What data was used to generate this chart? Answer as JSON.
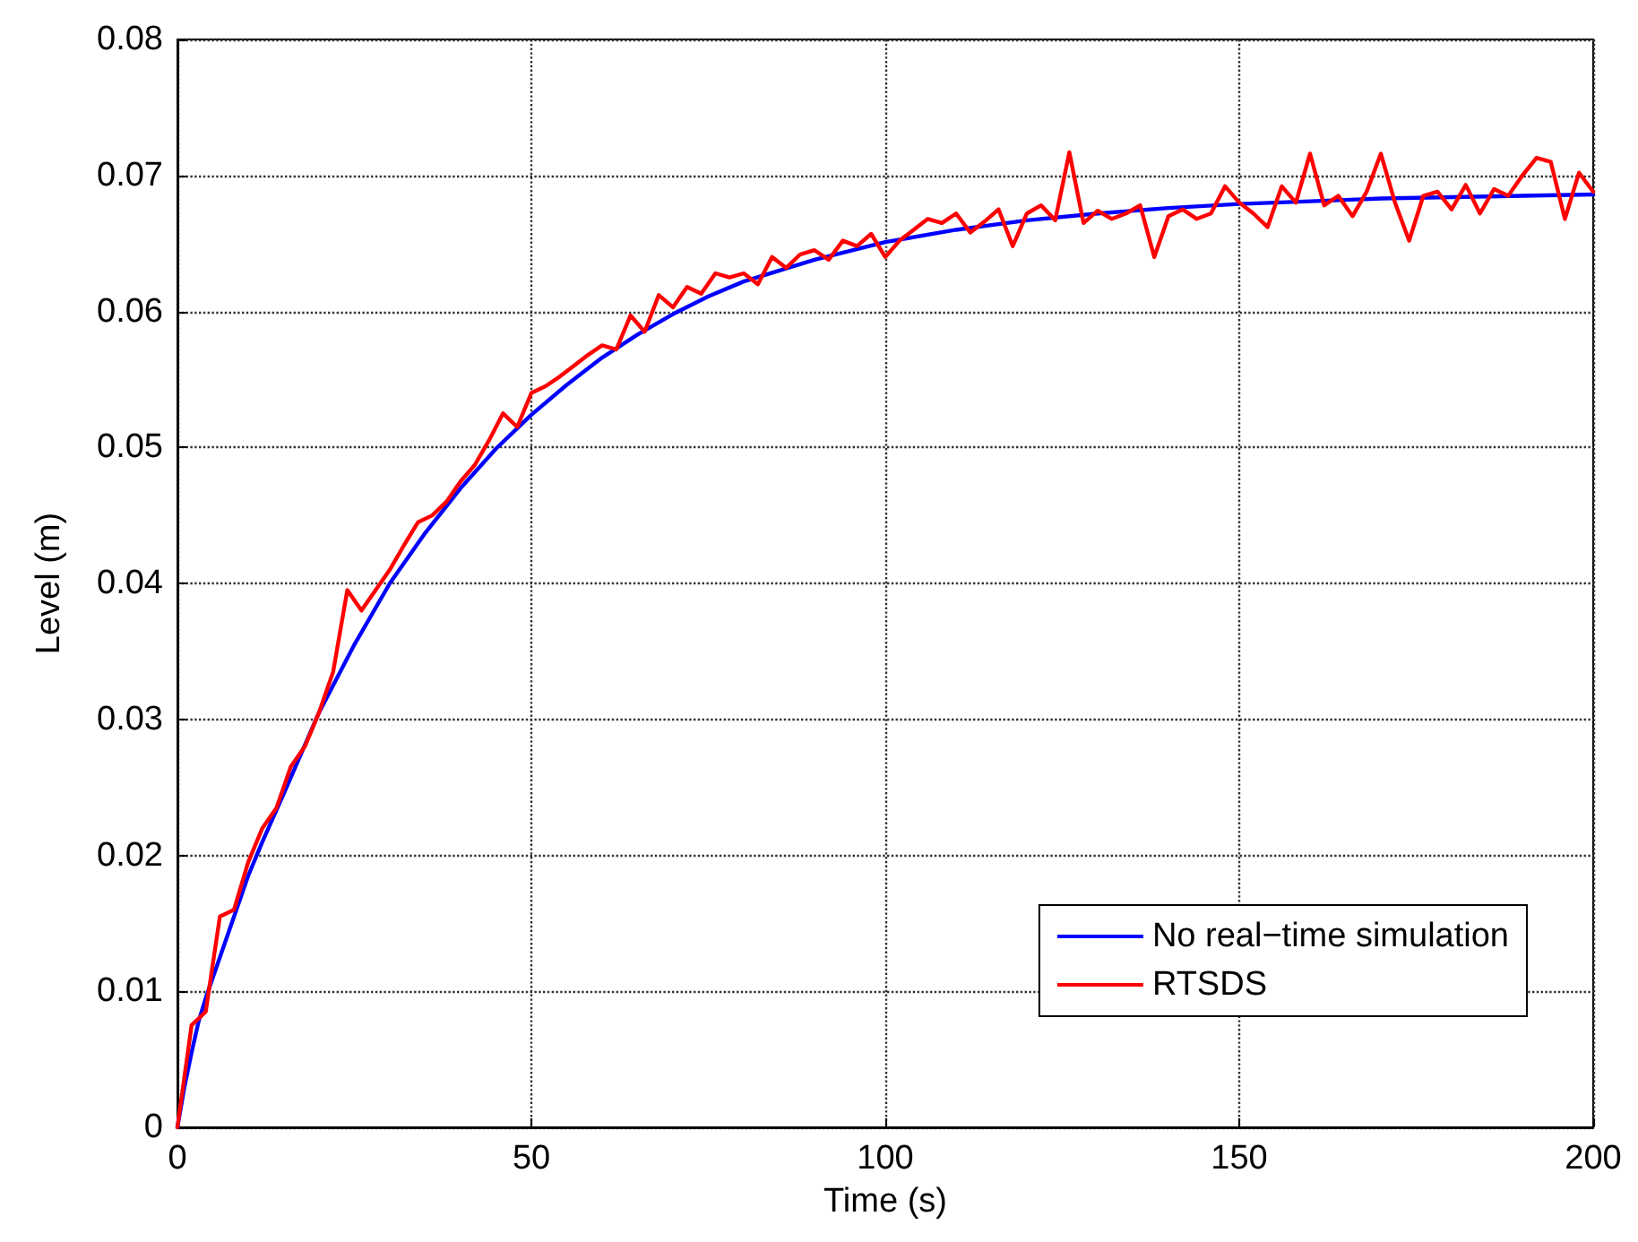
{
  "chart_data": {
    "type": "line",
    "xlabel": "Time (s)",
    "ylabel": "Level (m)",
    "xlim": [
      0,
      200
    ],
    "xticks": [
      0,
      50,
      100,
      150,
      200
    ],
    "ylim": [
      0,
      0.08
    ],
    "yticks": [
      0,
      0.01,
      0.02,
      0.03,
      0.04,
      0.05,
      0.06,
      0.07,
      0.08
    ],
    "grid": true,
    "legend": "bottom right",
    "marker": "none",
    "line_style": "solid",
    "series": [
      {
        "name": "No real−time simulation",
        "color": "#0000ff",
        "x": [
          0,
          1,
          2,
          3,
          4,
          5,
          6,
          8,
          10,
          12,
          15,
          20,
          25,
          30,
          35,
          40,
          45,
          50,
          55,
          60,
          65,
          70,
          75,
          80,
          90,
          100,
          110,
          120,
          130,
          140,
          150,
          160,
          170,
          180,
          190,
          200
        ],
        "values": [
          0,
          0.003,
          0.0055,
          0.0078,
          0.0095,
          0.011,
          0.0125,
          0.0155,
          0.0185,
          0.021,
          0.0245,
          0.0305,
          0.0355,
          0.04,
          0.0437,
          0.047,
          0.0499,
          0.0524,
          0.0546,
          0.0566,
          0.0583,
          0.0598,
          0.0611,
          0.0622,
          0.0638,
          0.0651,
          0.066,
          0.0667,
          0.0672,
          0.0676,
          0.0679,
          0.0681,
          0.0683,
          0.0684,
          0.0685,
          0.0686
        ]
      },
      {
        "name": "RTSDS",
        "color": "#ff0000",
        "x": [
          0,
          2,
          4,
          6,
          8,
          10,
          12,
          14,
          16,
          18,
          20,
          22,
          24,
          26,
          28,
          30,
          32,
          34,
          36,
          38,
          40,
          42,
          44,
          46,
          48,
          50,
          52,
          54,
          56,
          58,
          60,
          62,
          64,
          66,
          68,
          70,
          72,
          74,
          76,
          78,
          80,
          82,
          84,
          86,
          88,
          90,
          92,
          94,
          96,
          98,
          100,
          102,
          104,
          106,
          108,
          110,
          112,
          114,
          116,
          118,
          120,
          122,
          124,
          126,
          128,
          130,
          132,
          134,
          136,
          138,
          140,
          142,
          144,
          146,
          148,
          150,
          152,
          154,
          156,
          158,
          160,
          162,
          164,
          166,
          168,
          170,
          172,
          174,
          176,
          178,
          180,
          182,
          184,
          186,
          188,
          190,
          192,
          194,
          196,
          198,
          200
        ],
        "values": [
          0,
          0.0075,
          0.0085,
          0.0155,
          0.016,
          0.0195,
          0.022,
          0.0235,
          0.0265,
          0.028,
          0.0305,
          0.0335,
          0.0395,
          0.038,
          0.0395,
          0.041,
          0.0428,
          0.0445,
          0.045,
          0.046,
          0.0475,
          0.0487,
          0.0505,
          0.0525,
          0.0515,
          0.054,
          0.0545,
          0.0552,
          0.056,
          0.0568,
          0.0575,
          0.0572,
          0.0597,
          0.0585,
          0.0612,
          0.0603,
          0.0618,
          0.0613,
          0.0628,
          0.0625,
          0.0628,
          0.062,
          0.064,
          0.0632,
          0.0642,
          0.0645,
          0.0638,
          0.0652,
          0.0648,
          0.0657,
          0.064,
          0.0652,
          0.066,
          0.0668,
          0.0665,
          0.0672,
          0.0658,
          0.0666,
          0.0675,
          0.0648,
          0.0672,
          0.0678,
          0.0667,
          0.0717,
          0.0665,
          0.0674,
          0.0668,
          0.0672,
          0.0678,
          0.064,
          0.067,
          0.0675,
          0.0668,
          0.0672,
          0.0692,
          0.068,
          0.0672,
          0.0662,
          0.0692,
          0.068,
          0.0716,
          0.0678,
          0.0685,
          0.067,
          0.0688,
          0.0716,
          0.068,
          0.0652,
          0.0685,
          0.0688,
          0.0675,
          0.0693,
          0.0672,
          0.069,
          0.0685,
          0.07,
          0.0713,
          0.071,
          0.0668,
          0.0702,
          0.0688
        ]
      }
    ]
  }
}
